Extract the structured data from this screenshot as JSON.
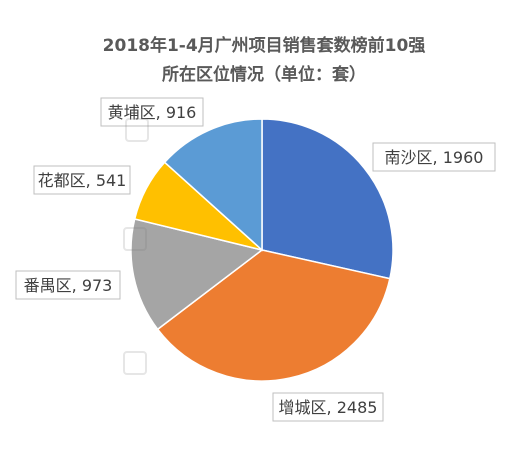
{
  "chart_data": {
    "type": "pie",
    "title": [
      "2018年1-4月广州项目销售套数榜前10强",
      "所在区位情况（单位：套）"
    ],
    "slices": [
      {
        "name": "南沙区",
        "value": 1960,
        "color": "#4472C4"
      },
      {
        "name": "增城区",
        "value": 2485,
        "color": "#ED7D31"
      },
      {
        "name": "番禺区",
        "value": 973,
        "color": "#A5A5A5"
      },
      {
        "name": "花都区",
        "value": 541,
        "color": "#FFC000"
      },
      {
        "name": "黄埔区",
        "value": 916,
        "color": "#5B9BD5"
      }
    ],
    "data_label_format": "{name}, {value}",
    "legend": "none"
  }
}
